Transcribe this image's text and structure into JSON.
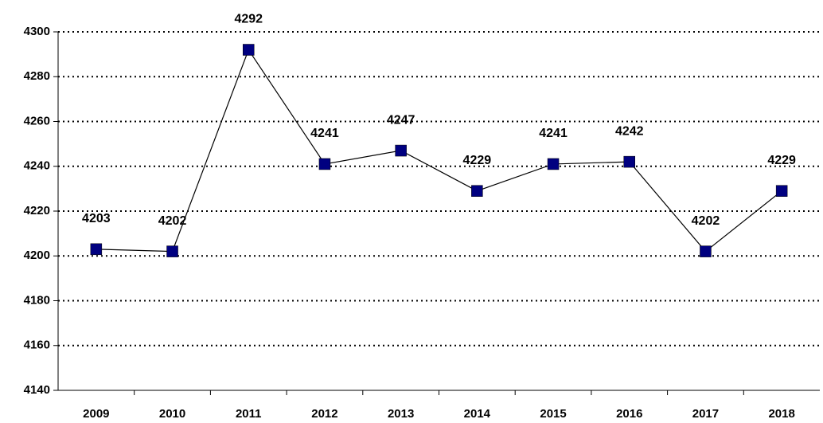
{
  "chart_data": {
    "type": "line",
    "categories": [
      "2009",
      "2010",
      "2011",
      "2012",
      "2013",
      "2014",
      "2015",
      "2016",
      "2017",
      "2018"
    ],
    "values": [
      4203,
      4202,
      4292,
      4241,
      4247,
      4229,
      4241,
      4242,
      4202,
      4229
    ],
    "color": "#000080",
    "line_color": "#000000",
    "ylim": [
      4140,
      4300
    ],
    "yticks": [
      4140,
      4160,
      4180,
      4200,
      4220,
      4240,
      4260,
      4280,
      4300
    ],
    "grid": true
  }
}
